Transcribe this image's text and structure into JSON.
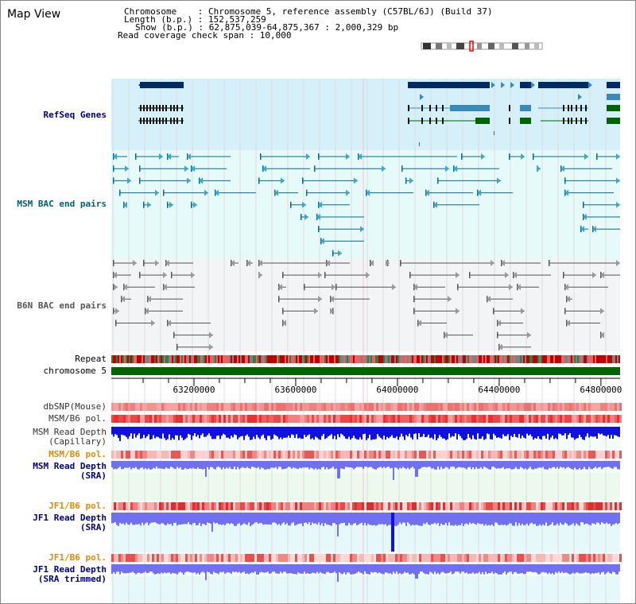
{
  "panel_title": "Map View",
  "info": {
    "chromosome": "Chromosome    : Chromosome 5, reference assembly (C57BL/6J) (Build 37)",
    "length": "Length (b.p.) : 152,537,259",
    "show": "Show (b.p.) : 62,875,039-64,875,367 : 2,000,329 bp",
    "coverage": "Read coverage check span : 10,000"
  },
  "tracks": {
    "refseq": "RefSeq Genes",
    "msm_bac": "MSM BAC end pairs",
    "b6n_bac": "B6N BAC end pairs",
    "repeat": "Repeat",
    "chromosome": "chromosome 5",
    "dbsnp": "dbSNP(Mouse)",
    "msm_b6_pol_1": "MSM/B6 pol.",
    "msm_depth_cap_1": "MSM Read Depth",
    "msm_depth_cap_2": "(Capillary)",
    "msm_b6_pol_2": "MSM/B6 pol.",
    "msm_depth_sra_1": "MSM Read Depth",
    "msm_depth_sra_2": "(SRA)",
    "jf1_pol_1": "JF1/B6 pol.",
    "jf1_depth_1": "JF1 Read Depth",
    "jf1_depth_2": "(SRA)",
    "jf1_pol_2": "JF1/B6 pol.",
    "jf1_trim_1": "JF1 Read Depth",
    "jf1_trim_2": "(SRA trimmed)"
  },
  "axis": {
    "ticks": [
      "63200000",
      "63600000",
      "64000000",
      "64400000",
      "64800000"
    ]
  },
  "colors": {
    "gene_dark": "#002a66",
    "gene_light": "#3a8ab8",
    "gene_green": "#006400",
    "refseq_bg": "#d6f0fa",
    "msm_bg": "#e6fafa",
    "b6n_bg": "#f2f4f6",
    "pol": "#f06666",
    "depth_dark": "#1010e0",
    "depth_light": "#7070f0"
  }
}
